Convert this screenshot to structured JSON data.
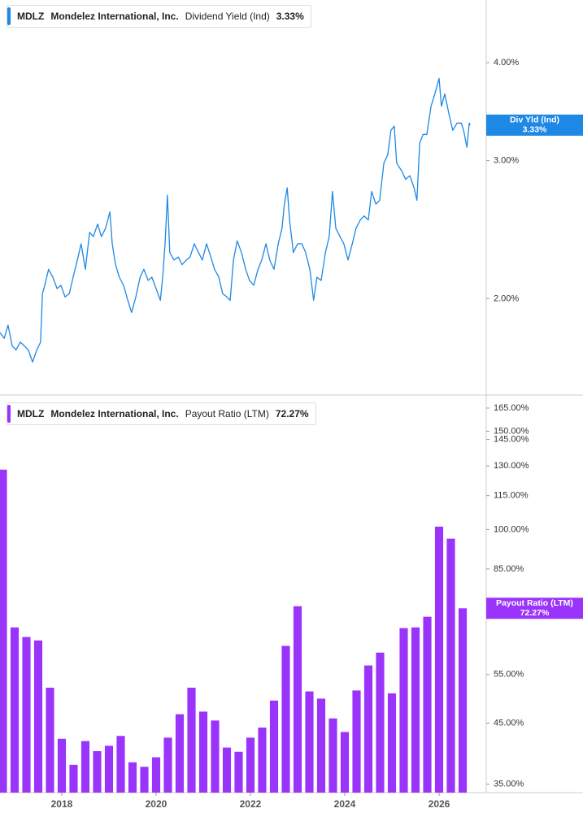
{
  "chart_data": [
    {
      "type": "line",
      "ticker": "MDLZ",
      "company": "Mondelez International, Inc.",
      "log_y": true,
      "grid": false,
      "xlim": [
        2016.69,
        2027.0
      ],
      "ylim": [
        1.51,
        4.81
      ],
      "yticks": [
        {
          "value": 2,
          "label": "2.00%"
        },
        {
          "value": 3,
          "label": "3.00%"
        },
        {
          "value": 4,
          "label": "4.00%"
        }
      ],
      "series": [
        {
          "name": "Dividend Yield (Ind)",
          "tag_name": "Div Yld (Ind)",
          "last_value_label": "3.33%",
          "color": "#1e88e5",
          "x": [
            2016.69,
            2016.78,
            2016.86,
            2016.95,
            2017.03,
            2017.12,
            2017.21,
            2017.29,
            2017.38,
            2017.47,
            2017.55,
            2017.59,
            2017.64,
            2017.72,
            2017.81,
            2017.9,
            2017.98,
            2018.07,
            2018.16,
            2018.24,
            2018.33,
            2018.41,
            2018.5,
            2018.59,
            2018.67,
            2018.76,
            2018.84,
            2018.93,
            2019.02,
            2019.07,
            2019.14,
            2019.22,
            2019.31,
            2019.4,
            2019.48,
            2019.57,
            2019.66,
            2019.74,
            2019.83,
            2019.91,
            2020.0,
            2020.09,
            2020.14,
            2020.19,
            2020.24,
            2020.29,
            2020.38,
            2020.47,
            2020.55,
            2020.64,
            2020.72,
            2020.81,
            2020.9,
            2020.98,
            2021.07,
            2021.16,
            2021.24,
            2021.33,
            2021.41,
            2021.5,
            2021.57,
            2021.64,
            2021.72,
            2021.81,
            2021.9,
            2021.98,
            2022.07,
            2022.16,
            2022.24,
            2022.33,
            2022.41,
            2022.5,
            2022.59,
            2022.67,
            2022.72,
            2022.78,
            2022.83,
            2022.91,
            2023.0,
            2023.09,
            2023.17,
            2023.26,
            2023.34,
            2023.41,
            2023.5,
            2023.59,
            2023.67,
            2023.74,
            2023.81,
            2023.9,
            2023.98,
            2024.07,
            2024.16,
            2024.24,
            2024.33,
            2024.41,
            2024.5,
            2024.57,
            2024.66,
            2024.74,
            2024.83,
            2024.91,
            2024.98,
            2025.05,
            2025.1,
            2025.16,
            2025.21,
            2025.29,
            2025.38,
            2025.47,
            2025.53,
            2025.59,
            2025.66,
            2025.74,
            2025.83,
            2025.91,
            2026.0,
            2026.05,
            2026.12,
            2026.21,
            2026.29,
            2026.38,
            2026.47,
            2026.52,
            2026.59,
            2026.64,
            2026.66
          ],
          "values": [
            1.81,
            1.78,
            1.85,
            1.74,
            1.72,
            1.76,
            1.74,
            1.72,
            1.66,
            1.72,
            1.76,
            2.03,
            2.08,
            2.18,
            2.13,
            2.06,
            2.08,
            2.01,
            2.03,
            2.13,
            2.24,
            2.35,
            2.18,
            2.43,
            2.4,
            2.49,
            2.4,
            2.46,
            2.58,
            2.35,
            2.21,
            2.13,
            2.08,
            1.99,
            1.92,
            2.01,
            2.13,
            2.18,
            2.11,
            2.13,
            2.06,
            1.99,
            2.13,
            2.35,
            2.71,
            2.29,
            2.24,
            2.26,
            2.21,
            2.24,
            2.26,
            2.35,
            2.29,
            2.24,
            2.35,
            2.26,
            2.18,
            2.13,
            2.03,
            2.01,
            1.99,
            2.24,
            2.37,
            2.29,
            2.18,
            2.11,
            2.08,
            2.18,
            2.24,
            2.35,
            2.24,
            2.18,
            2.35,
            2.46,
            2.64,
            2.77,
            2.52,
            2.29,
            2.35,
            2.35,
            2.29,
            2.18,
            1.99,
            2.13,
            2.11,
            2.29,
            2.4,
            2.74,
            2.46,
            2.4,
            2.35,
            2.24,
            2.35,
            2.46,
            2.52,
            2.55,
            2.52,
            2.74,
            2.64,
            2.67,
            2.98,
            3.05,
            3.28,
            3.32,
            2.98,
            2.94,
            2.91,
            2.84,
            2.87,
            2.77,
            2.67,
            3.16,
            3.24,
            3.24,
            3.52,
            3.65,
            3.82,
            3.52,
            3.65,
            3.44,
            3.28,
            3.35,
            3.35,
            3.28,
            3.12,
            3.35,
            3.33
          ]
        }
      ]
    },
    {
      "type": "bar",
      "ticker": "MDLZ",
      "company": "Mondelez International, Inc.",
      "log_y": true,
      "grid": false,
      "xlim": [
        2016.69,
        2027.0
      ],
      "ylim": [
        33.8,
        173.5
      ],
      "xticks": [
        2018,
        2020,
        2022,
        2024,
        2026
      ],
      "yticks": [
        {
          "value": 35,
          "label": "35.00%"
        },
        {
          "value": 45,
          "label": "45.00%"
        },
        {
          "value": 55,
          "label": "55.00%"
        },
        {
          "value": 85,
          "label": "85.00%"
        },
        {
          "value": 100,
          "label": "100.00%"
        },
        {
          "value": 115,
          "label": "115.00%"
        },
        {
          "value": 130,
          "label": "130.00%"
        },
        {
          "value": 145,
          "label": "145.00%"
        },
        {
          "value": 150,
          "label": "150.00%"
        },
        {
          "value": 165,
          "label": "165.00%"
        }
      ],
      "series": [
        {
          "name": "Payout Ratio (LTM)",
          "tag_name": "Payout Ratio (LTM)",
          "last_value_label": "72.27%",
          "color": "#9b34fb",
          "x": [
            2016.75,
            2017.0,
            2017.25,
            2017.5,
            2017.75,
            2018.0,
            2018.25,
            2018.5,
            2018.75,
            2019.0,
            2019.25,
            2019.5,
            2019.75,
            2020.0,
            2020.25,
            2020.5,
            2020.75,
            2021.0,
            2021.25,
            2021.5,
            2021.75,
            2022.0,
            2022.25,
            2022.5,
            2022.75,
            2023.0,
            2023.25,
            2023.5,
            2023.75,
            2024.0,
            2024.25,
            2024.5,
            2024.75,
            2025.0,
            2025.25,
            2025.5,
            2025.75,
            2026.0,
            2026.25,
            2026.5
          ],
          "values": [
            128.0,
            66.8,
            64.2,
            63.3,
            52.1,
            42.2,
            37.9,
            41.8,
            40.1,
            41.0,
            42.7,
            38.3,
            37.6,
            39.1,
            42.4,
            46.7,
            52.1,
            47.2,
            45.5,
            40.7,
            40.0,
            42.4,
            44.2,
            49.4,
            61.9,
            72.9,
            51.3,
            49.8,
            45.9,
            43.4,
            51.5,
            57.1,
            60.2,
            50.9,
            66.6,
            66.8,
            69.8,
            101.2,
            96.3,
            72.27
          ]
        }
      ]
    }
  ]
}
